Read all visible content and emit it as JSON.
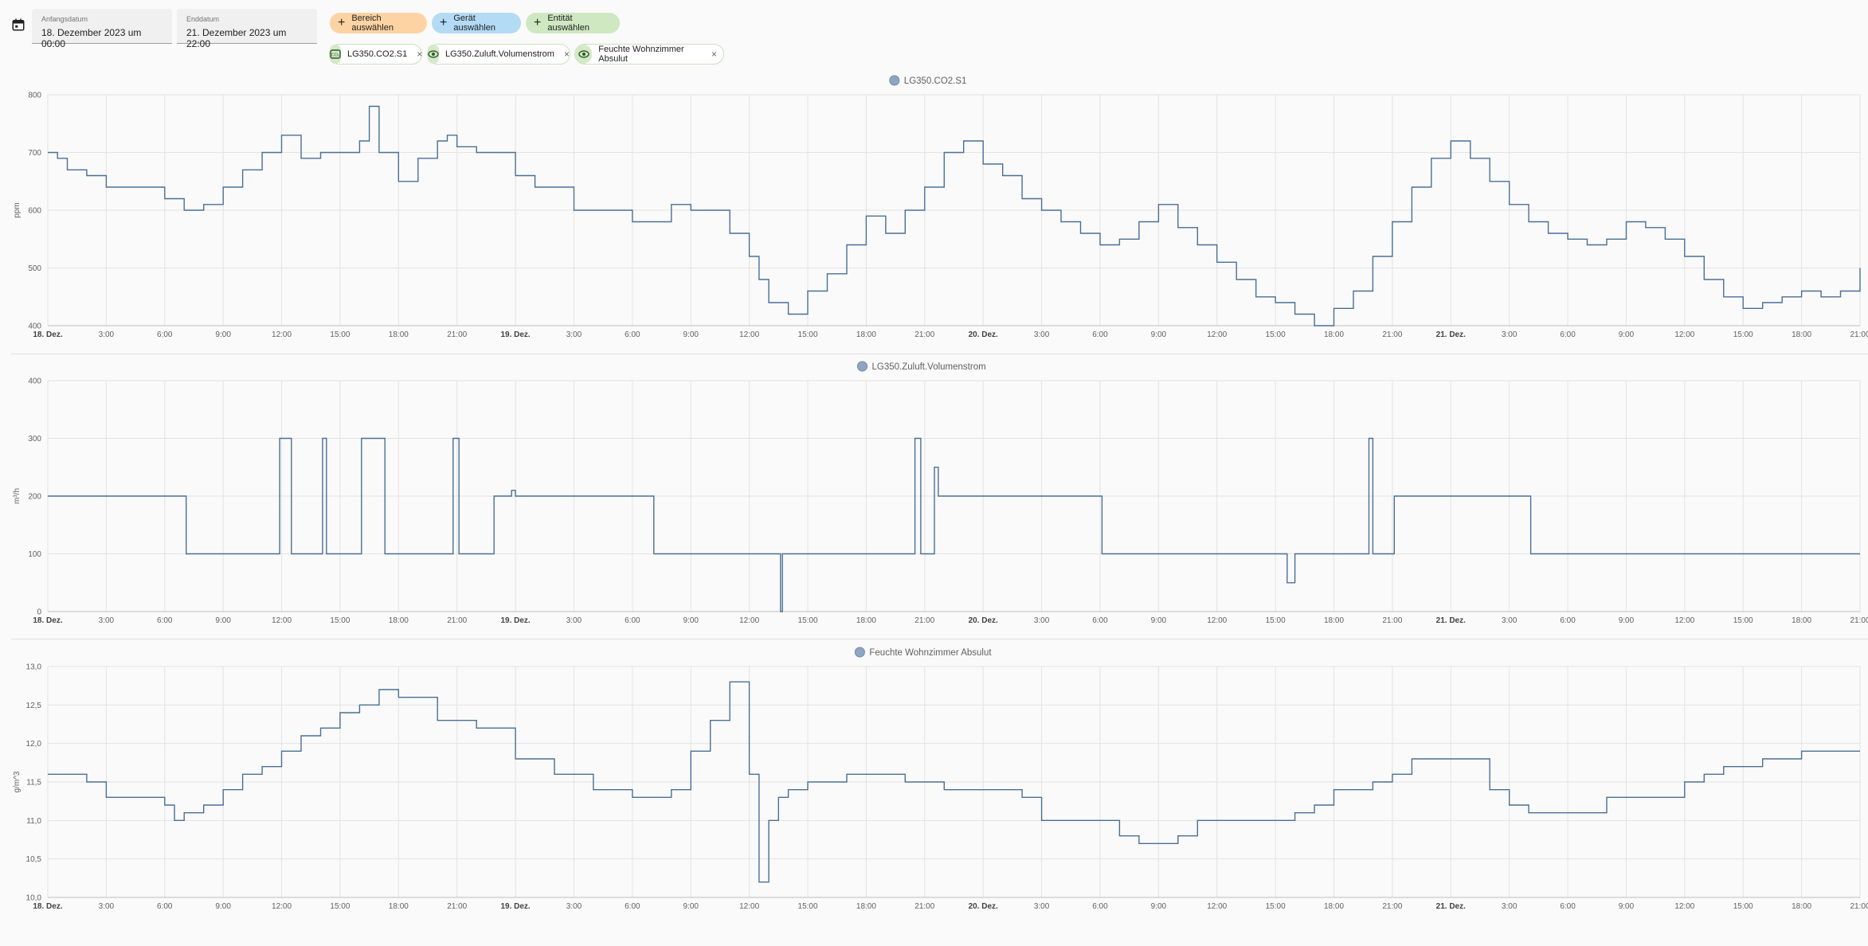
{
  "date_range": {
    "start_label": "Anfangsdatum",
    "start_value": "18. Dezember 2023 um 00:00",
    "end_label": "Enddatum",
    "end_value": "21. Dezember 2023 um 22:00"
  },
  "target_buttons": {
    "area": "Bereich auswählen",
    "device": "Gerät auswählen",
    "entity": "Entität auswählen"
  },
  "selected_entities": [
    {
      "label": "LG350.CO2.S1",
      "icon": "co2-icon"
    },
    {
      "label": "LG350.Zuluft.Volumenstrom",
      "icon": "eye-icon"
    },
    {
      "label": "Feuchte Wohnzimmer Absulut",
      "icon": "eye-icon"
    }
  ],
  "colors": {
    "line": "#4a6f96",
    "legend_dot": "#8fa6c2",
    "grid": "#e3e3e3"
  },
  "chart_data": [
    {
      "type": "line",
      "title": "LG350.CO2.S1",
      "ylabel": "ppm",
      "ylim": [
        400,
        800
      ],
      "yticks": [
        "400",
        "500",
        "600",
        "700",
        "800"
      ],
      "xticks": [
        "18. Dez.",
        "3:00",
        "6:00",
        "9:00",
        "12:00",
        "15:00",
        "18:00",
        "21:00",
        "19. Dez.",
        "3:00",
        "6:00",
        "9:00",
        "12:00",
        "15:00",
        "18:00",
        "21:00",
        "20. Dez.",
        "3:00",
        "6:00",
        "9:00",
        "12:00",
        "15:00",
        "18:00",
        "21:00",
        "21. Dez.",
        "3:00",
        "6:00",
        "9:00",
        "12:00",
        "15:00",
        "18:00",
        "21:00"
      ],
      "xlim_hours": [
        0,
        93
      ],
      "series": [
        {
          "name": "LG350.CO2.S1",
          "x": [
            0,
            0.5,
            1,
            2,
            3,
            6,
            7,
            8,
            9,
            10,
            11,
            12,
            13,
            14,
            15,
            16,
            16.5,
            17,
            18,
            19,
            20,
            20.5,
            21,
            22,
            24,
            25,
            27,
            30,
            32,
            33,
            35,
            36,
            36.5,
            37,
            38,
            39,
            40,
            41,
            42,
            43,
            44,
            45,
            46,
            47,
            48,
            49,
            50,
            51,
            52,
            53,
            54,
            55,
            56,
            57,
            58,
            59,
            60,
            61,
            62,
            63,
            64,
            65,
            66,
            67,
            68,
            69,
            70,
            71,
            72,
            73,
            74,
            75,
            76,
            77,
            78,
            79,
            80,
            81,
            82,
            83,
            84,
            85,
            86,
            87,
            88,
            89,
            90,
            91,
            92,
            93
          ],
          "values": [
            700,
            690,
            670,
            660,
            640,
            620,
            600,
            610,
            640,
            670,
            700,
            730,
            690,
            700,
            700,
            720,
            780,
            700,
            650,
            690,
            720,
            730,
            710,
            700,
            660,
            640,
            600,
            580,
            610,
            600,
            560,
            520,
            480,
            440,
            420,
            460,
            490,
            540,
            590,
            560,
            600,
            640,
            700,
            720,
            680,
            660,
            620,
            600,
            580,
            560,
            540,
            550,
            580,
            610,
            570,
            540,
            510,
            480,
            450,
            440,
            420,
            400,
            430,
            460,
            520,
            580,
            640,
            690,
            720,
            690,
            650,
            610,
            580,
            560,
            550,
            540,
            550,
            580,
            570,
            550,
            520,
            480,
            450,
            430,
            440,
            450,
            460,
            450,
            460,
            500
          ]
        }
      ]
    },
    {
      "type": "line",
      "title": "LG350.Zuluft.Volumenstrom",
      "ylabel": "m³/h",
      "ylim": [
        0,
        400
      ],
      "yticks": [
        "0",
        "100",
        "200",
        "300",
        "400"
      ],
      "xticks": [
        "18. Dez.",
        "3:00",
        "6:00",
        "9:00",
        "12:00",
        "15:00",
        "18:00",
        "21:00",
        "19. Dez.",
        "3:00",
        "6:00",
        "9:00",
        "12:00",
        "15:00",
        "18:00",
        "21:00",
        "20. Dez.",
        "3:00",
        "6:00",
        "9:00",
        "12:00",
        "15:00",
        "18:00",
        "21:00",
        "21. Dez.",
        "3:00",
        "6:00",
        "9:00",
        "12:00",
        "15:00",
        "18:00",
        "21:00"
      ],
      "xlim_hours": [
        0,
        93
      ],
      "series": [
        {
          "name": "LG350.Zuluft.Volumenstrom",
          "x": [
            0,
            7,
            7.1,
            11,
            11.9,
            12.2,
            12.5,
            13.9,
            14.1,
            14.3,
            16,
            16.1,
            17,
            17.3,
            20.5,
            20.8,
            21.1,
            21.7,
            22.8,
            22.9,
            23.8,
            24,
            31,
            31.1,
            37.5,
            37.6,
            37.7,
            44,
            44.5,
            44.8,
            45,
            45.5,
            45.7,
            54,
            54.1,
            63.5,
            63.6,
            64,
            64.2,
            67.5,
            67.8,
            68,
            69,
            69.1,
            76,
            76.1,
            93
          ],
          "values": [
            200,
            200,
            100,
            100,
            300,
            300,
            100,
            100,
            300,
            100,
            100,
            300,
            300,
            100,
            100,
            300,
            100,
            100,
            100,
            200,
            210,
            200,
            200,
            100,
            100,
            0,
            100,
            100,
            300,
            100,
            100,
            250,
            200,
            200,
            100,
            100,
            50,
            100,
            100,
            100,
            300,
            100,
            100,
            200,
            200,
            100,
            100
          ]
        }
      ]
    },
    {
      "type": "line",
      "title": "Feuchte Wohnzimmer Absulut",
      "ylabel": "g/m^3",
      "ylim": [
        10.0,
        13.0
      ],
      "yticks": [
        "10,0",
        "10,5",
        "11,0",
        "11,5",
        "12,0",
        "12,5",
        "13,0"
      ],
      "xticks": [
        "18. Dez.",
        "3:00",
        "6:00",
        "9:00",
        "12:00",
        "15:00",
        "18:00",
        "21:00",
        "19. Dez.",
        "3:00",
        "6:00",
        "9:00",
        "12:00",
        "15:00",
        "18:00",
        "21:00",
        "20. Dez.",
        "3:00",
        "6:00",
        "9:00",
        "12:00",
        "15:00",
        "18:00",
        "21:00",
        "21. Dez.",
        "3:00",
        "6:00",
        "9:00",
        "12:00",
        "15:00",
        "18:00",
        "21:00"
      ],
      "xlim_hours": [
        0,
        93
      ],
      "series": [
        {
          "name": "Feuchte Wohnzimmer Absulut",
          "x": [
            0,
            2,
            3,
            6,
            6.5,
            7,
            8,
            9,
            10,
            11,
            12,
            13,
            14,
            15,
            16,
            17,
            18,
            20,
            21,
            22,
            24,
            26,
            28,
            30,
            32,
            33,
            34,
            35,
            36,
            36.5,
            37,
            37.5,
            38,
            39,
            41,
            44,
            46,
            50,
            51,
            53,
            55,
            56,
            57,
            58,
            59,
            60,
            61,
            62,
            63,
            64,
            65,
            66,
            68,
            69,
            70,
            72,
            74,
            75,
            76,
            77,
            78,
            80,
            81,
            82,
            83,
            84,
            85,
            86,
            88,
            90,
            91,
            93
          ],
          "values": [
            11.6,
            11.5,
            11.3,
            11.2,
            11.0,
            11.1,
            11.2,
            11.4,
            11.6,
            11.7,
            11.9,
            12.1,
            12.2,
            12.4,
            12.5,
            12.7,
            12.6,
            12.3,
            12.3,
            12.2,
            11.8,
            11.6,
            11.4,
            11.3,
            11.4,
            11.9,
            12.3,
            12.8,
            11.6,
            10.2,
            11.0,
            11.3,
            11.4,
            11.5,
            11.6,
            11.5,
            11.4,
            11.3,
            11.0,
            11.0,
            10.8,
            10.7,
            10.7,
            10.8,
            11.0,
            11.0,
            11.0,
            11.0,
            11.0,
            11.1,
            11.2,
            11.4,
            11.5,
            11.6,
            11.8,
            11.8,
            11.4,
            11.2,
            11.1,
            11.1,
            11.1,
            11.3,
            11.3,
            11.3,
            11.3,
            11.5,
            11.6,
            11.7,
            11.8,
            11.9,
            11.9,
            11.9
          ]
        }
      ]
    }
  ]
}
